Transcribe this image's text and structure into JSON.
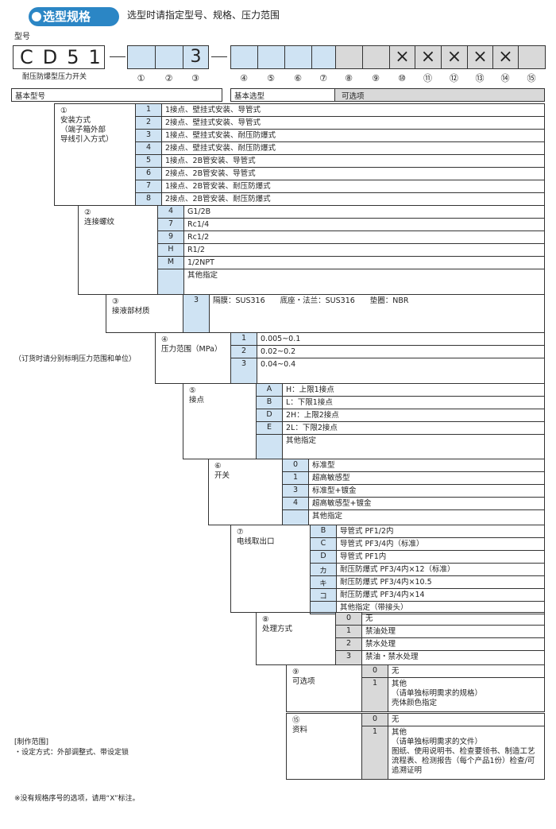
{
  "header": {
    "badge": "选型规格",
    "subtitle": "选型时请指定型号、规格、压力范围"
  },
  "code": {
    "label": "型号",
    "prefix": "CD51",
    "fixed_digit": "3",
    "unused_marks": [
      "×",
      "×",
      "×",
      "×",
      "×"
    ],
    "product_name": "耐压防爆型压力开关",
    "slot_numbers": [
      "①",
      "②",
      "③",
      "④",
      "⑤",
      "⑥",
      "⑦",
      "⑧",
      "⑨",
      "⑩",
      "⑪",
      "⑫",
      "⑬",
      "⑭",
      "⑮"
    ]
  },
  "groups": {
    "base_model": "基本型号",
    "base_selection": "基本选型",
    "options": "可选项"
  },
  "sections": [
    {
      "num": "①",
      "title": [
        "安装方式",
        "（端子箱外部",
        "导线引入方式）"
      ],
      "options": [
        {
          "code": "1",
          "desc": [
            "1接点、壁挂式安装、导管式"
          ]
        },
        {
          "code": "2",
          "desc": [
            "2接点、壁挂式安装、导管式"
          ]
        },
        {
          "code": "3",
          "desc": [
            "1接点、壁挂式安装、耐压防爆式"
          ]
        },
        {
          "code": "4",
          "desc": [
            "2接点、壁挂式安装、耐压防爆式"
          ]
        },
        {
          "code": "5",
          "desc": [
            "1接点、2B管安装、导管式"
          ]
        },
        {
          "code": "6",
          "desc": [
            "2接点、2B管安装、导管式"
          ]
        },
        {
          "code": "7",
          "desc": [
            "1接点、2B管安装、耐压防爆式"
          ]
        },
        {
          "code": "8",
          "desc": [
            "2接点、2B管安装、耐压防爆式"
          ]
        }
      ]
    },
    {
      "num": "②",
      "title": [
        "连接螺纹"
      ],
      "options": [
        {
          "code": "4",
          "desc": [
            "G1/2B"
          ]
        },
        {
          "code": "7",
          "desc": [
            "Rc1/4"
          ]
        },
        {
          "code": "9",
          "desc": [
            "Rc1/2"
          ]
        },
        {
          "code": "H",
          "desc": [
            "R1/2"
          ]
        },
        {
          "code": "M",
          "desc": [
            "1/2NPT"
          ]
        },
        {
          "desc": [
            "其他指定"
          ]
        }
      ]
    },
    {
      "num": "③",
      "title": [
        "接液部材质"
      ],
      "options": [
        {
          "code": "3",
          "desc": [
            "隔膜：SUS316　　底座・法兰：SUS316　　垫圈：NBR"
          ]
        }
      ]
    },
    {
      "num": "④",
      "title": [
        "压力范围（MPa）"
      ],
      "options": [
        {
          "code": "1",
          "desc": [
            "0.005~0.1"
          ]
        },
        {
          "code": "2",
          "desc": [
            "0.02~0.2"
          ]
        },
        {
          "code": "3",
          "desc": [
            "0.04~0.4"
          ]
        }
      ]
    },
    {
      "num": "⑤",
      "title": [
        "接点"
      ],
      "options": [
        {
          "code": "A",
          "desc": [
            "H：上限1接点"
          ]
        },
        {
          "code": "B",
          "desc": [
            "L：下限1接点"
          ]
        },
        {
          "code": "D",
          "desc": [
            "2H：上限2接点"
          ]
        },
        {
          "code": "E",
          "desc": [
            "2L：下限2接点"
          ]
        },
        {
          "desc": [
            "其他指定"
          ]
        }
      ]
    },
    {
      "num": "⑥",
      "title": [
        "开关"
      ],
      "options": [
        {
          "code": "0",
          "desc": [
            "标准型"
          ]
        },
        {
          "code": "1",
          "desc": [
            "超高敏感型"
          ]
        },
        {
          "code": "3",
          "desc": [
            "标准型+镀金"
          ]
        },
        {
          "code": "4",
          "desc": [
            "超高敏感型+镀金"
          ]
        },
        {
          "desc": [
            "其他指定"
          ]
        }
      ]
    },
    {
      "num": "⑦",
      "title": [
        "电线取出口"
      ],
      "options": [
        {
          "code": "B",
          "desc": [
            "导管式  PF1/2内"
          ]
        },
        {
          "code": "C",
          "desc": [
            "导管式  PF3/4内（标准）"
          ]
        },
        {
          "code": "D",
          "desc": [
            "导管式  PF1内"
          ]
        },
        {
          "code": "カ",
          "desc": [
            "耐压防爆式  PF3/4内×12（标准）"
          ]
        },
        {
          "code": "キ",
          "desc": [
            "耐压防爆式  PF3/4内×10.5"
          ]
        },
        {
          "code": "コ",
          "desc": [
            "耐压防爆式  PF3/4内×14"
          ]
        },
        {
          "desc": [
            "其他指定（带接头）"
          ]
        }
      ]
    },
    {
      "num": "⑧",
      "title": [
        "处理方式"
      ],
      "options": [
        {
          "code": "0",
          "desc": [
            "无"
          ]
        },
        {
          "code": "1",
          "desc": [
            "禁油处理"
          ]
        },
        {
          "code": "2",
          "desc": [
            "禁水处理"
          ]
        },
        {
          "code": "3",
          "desc": [
            "禁油・禁水处理"
          ]
        }
      ]
    },
    {
      "num": "⑨",
      "title": [
        "可选项"
      ],
      "options": [
        {
          "code": "0",
          "desc": [
            "无"
          ]
        },
        {
          "code": "1",
          "desc": [
            "其他",
            "（请单独标明需求的规格）",
            "壳体颜色指定"
          ]
        }
      ]
    },
    {
      "num": "⑮",
      "title": [
        "资料"
      ],
      "options": [
        {
          "code": "0",
          "desc": [
            "无"
          ]
        },
        {
          "code": "1",
          "desc": [
            "其他",
            "（请单独标明需求的文件）",
            "图纸、使用说明书、检查要领书、制造工艺",
            "流程表、检测报告（每个产品1份）检查/可",
            "追溯证明"
          ]
        }
      ]
    }
  ],
  "notes": {
    "pressure": "（订货时请分别标明压力范围和单位）",
    "scope_title": "[制作范围]",
    "scope_item": "・设定方式：外部调整式、带设定锁",
    "footnote": "※没有规格序号的选项，请用“X”标注。"
  }
}
